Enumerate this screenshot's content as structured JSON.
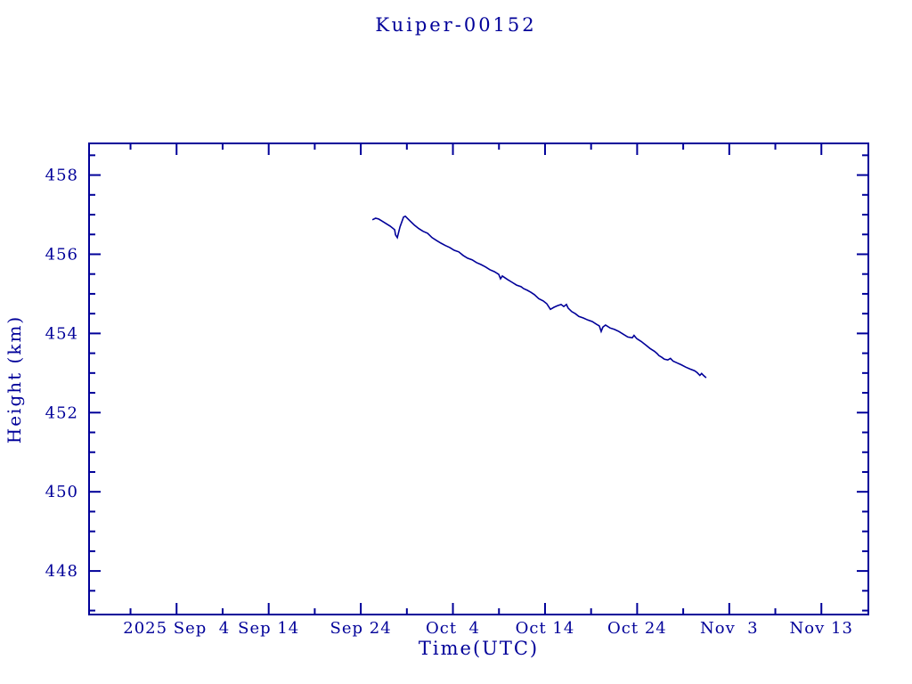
{
  "page": {
    "background": "#ffffff"
  },
  "chart_data": {
    "type": "line",
    "title": "Kuiper-00152",
    "xlabel": "Time(UTC)",
    "ylabel": "Height (km)",
    "axis_color": "#000099",
    "line_color": "#000099",
    "grid": false,
    "legend": "none",
    "x_axis": {
      "unit": "days since 2025 Sep 4 00:00 UTC",
      "range": [
        -9.5,
        75.1
      ],
      "minor_step": 5,
      "major_ticks": [
        {
          "day": 0,
          "label": "2025 Sep  4"
        },
        {
          "day": 10,
          "label": "Sep 14"
        },
        {
          "day": 20,
          "label": "Sep 24"
        },
        {
          "day": 30,
          "label": "Oct  4"
        },
        {
          "day": 40,
          "label": "Oct 14"
        },
        {
          "day": 50,
          "label": "Oct 24"
        },
        {
          "day": 60,
          "label": "Nov  3"
        },
        {
          "day": 70,
          "label": "Nov 13"
        }
      ]
    },
    "y_axis": {
      "range": [
        446.9,
        458.8
      ],
      "minor_step": 0.5,
      "major_ticks": [
        448,
        450,
        452,
        454,
        456,
        458
      ]
    },
    "series": [
      {
        "name": "Kuiper-00152 height",
        "points": [
          [
            21.26,
            456.87
          ],
          [
            21.6,
            456.91
          ],
          [
            21.93,
            456.89
          ],
          [
            22.22,
            456.85
          ],
          [
            22.71,
            456.78
          ],
          [
            23.19,
            456.71
          ],
          [
            23.67,
            456.62
          ],
          [
            23.77,
            456.49
          ],
          [
            23.96,
            456.42
          ],
          [
            24.25,
            456.69
          ],
          [
            24.64,
            456.94
          ],
          [
            24.83,
            456.96
          ],
          [
            25.31,
            456.85
          ],
          [
            25.8,
            456.74
          ],
          [
            26.28,
            456.65
          ],
          [
            26.76,
            456.58
          ],
          [
            27.25,
            456.53
          ],
          [
            27.73,
            456.42
          ],
          [
            28.21,
            456.35
          ],
          [
            28.7,
            456.28
          ],
          [
            29.18,
            456.22
          ],
          [
            29.66,
            456.17
          ],
          [
            30.14,
            456.1
          ],
          [
            30.63,
            456.06
          ],
          [
            31.11,
            455.97
          ],
          [
            31.59,
            455.9
          ],
          [
            32.08,
            455.86
          ],
          [
            32.56,
            455.79
          ],
          [
            33.04,
            455.74
          ],
          [
            33.53,
            455.68
          ],
          [
            34.01,
            455.61
          ],
          [
            34.49,
            455.56
          ],
          [
            34.98,
            455.49
          ],
          [
            35.17,
            455.38
          ],
          [
            35.36,
            455.45
          ],
          [
            35.94,
            455.36
          ],
          [
            36.43,
            455.29
          ],
          [
            36.91,
            455.22
          ],
          [
            37.39,
            455.18
          ],
          [
            37.68,
            455.13
          ],
          [
            38.07,
            455.09
          ],
          [
            38.45,
            455.04
          ],
          [
            38.84,
            454.98
          ],
          [
            39.32,
            454.88
          ],
          [
            39.81,
            454.82
          ],
          [
            40.19,
            454.75
          ],
          [
            40.58,
            454.61
          ],
          [
            40.97,
            454.66
          ],
          [
            41.35,
            454.7
          ],
          [
            41.74,
            454.73
          ],
          [
            42.03,
            454.68
          ],
          [
            42.32,
            454.73
          ],
          [
            42.51,
            454.64
          ],
          [
            42.9,
            454.55
          ],
          [
            43.29,
            454.5
          ],
          [
            43.67,
            454.43
          ],
          [
            44.15,
            454.39
          ],
          [
            44.64,
            454.34
          ],
          [
            45.12,
            454.3
          ],
          [
            45.6,
            454.23
          ],
          [
            45.89,
            454.19
          ],
          [
            46.09,
            454.05
          ],
          [
            46.28,
            454.16
          ],
          [
            46.57,
            454.21
          ],
          [
            47.05,
            454.14
          ],
          [
            47.54,
            454.1
          ],
          [
            48.02,
            454.05
          ],
          [
            48.5,
            453.98
          ],
          [
            48.99,
            453.91
          ],
          [
            49.47,
            453.89
          ],
          [
            49.66,
            453.95
          ],
          [
            49.95,
            453.87
          ],
          [
            50.43,
            453.8
          ],
          [
            50.92,
            453.71
          ],
          [
            51.4,
            453.62
          ],
          [
            51.88,
            453.55
          ],
          [
            52.17,
            453.49
          ],
          [
            52.37,
            453.44
          ],
          [
            52.66,
            453.4
          ],
          [
            52.95,
            453.35
          ],
          [
            53.33,
            453.33
          ],
          [
            53.62,
            453.37
          ],
          [
            53.91,
            453.3
          ],
          [
            54.3,
            453.26
          ],
          [
            54.78,
            453.21
          ],
          [
            55.27,
            453.15
          ],
          [
            55.75,
            453.1
          ],
          [
            56.23,
            453.06
          ],
          [
            56.52,
            453.01
          ],
          [
            56.81,
            452.94
          ],
          [
            57.0,
            452.99
          ],
          [
            57.2,
            452.94
          ],
          [
            57.49,
            452.88
          ]
        ]
      }
    ]
  }
}
